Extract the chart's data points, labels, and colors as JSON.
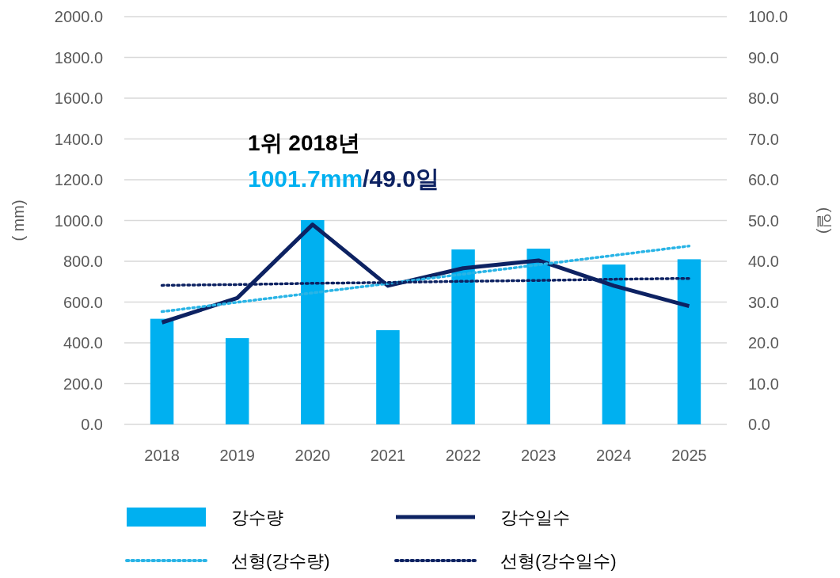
{
  "chart_data": {
    "type": "bar",
    "categories": [
      "2018",
      "2019",
      "2020",
      "2021",
      "2022",
      "2023",
      "2024",
      "2025"
    ],
    "ylabel": "( mm)",
    "y2label": "(일)",
    "annotations": [
      "1위 2018년",
      "1001.7mm",
      "/49.0일"
    ],
    "series": [
      {
        "name": "강수량",
        "color": "#00b0f0",
        "values": [
          518,
          423,
          1002,
          462,
          858,
          862,
          784,
          810
        ]
      },
      {
        "name": "강수일수",
        "type": "line",
        "axis": "y2",
        "color": "#0d2262",
        "line_style": "solid",
        "values": [
          25.0,
          31.0,
          49.0,
          34.0,
          38.3,
          40.2,
          34.0,
          29.0
        ]
      },
      {
        "name": "선형(강수량)",
        "type": "line",
        "color": "#29b4e6",
        "line_style": "dotted",
        "values": [
          553,
          599,
          645,
          691,
          737,
          783,
          829,
          875
        ]
      },
      {
        "name": "선형(강수일수)",
        "type": "line",
        "axis": "y2",
        "color": "#0d2262",
        "line_style": "dotted",
        "values": [
          34.1,
          34.3,
          34.6,
          34.8,
          35.1,
          35.3,
          35.6,
          35.8
        ]
      }
    ],
    "ylim": [
      0,
      2000
    ],
    "yticks": [
      {
        "value": 0,
        "label": "0.0"
      },
      {
        "value": 200,
        "label": "200.0"
      },
      {
        "value": 400,
        "label": "400.0"
      },
      {
        "value": 600,
        "label": "600.0"
      },
      {
        "value": 800,
        "label": "800.0"
      },
      {
        "value": 1000,
        "label": "1000.0"
      },
      {
        "value": 1200,
        "label": "1200.0"
      },
      {
        "value": 1400,
        "label": "1400.0"
      },
      {
        "value": 1600,
        "label": "1600.0"
      },
      {
        "value": 1800,
        "label": "1800.0"
      },
      {
        "value": 2000,
        "label": "2000.0"
      }
    ],
    "y2lim": [
      0,
      100
    ],
    "y2ticks": [
      {
        "value": 0,
        "label": "0.0"
      },
      {
        "value": 10,
        "label": "10.0"
      },
      {
        "value": 20,
        "label": "20.0"
      },
      {
        "value": 30,
        "label": "30.0"
      },
      {
        "value": 40,
        "label": "40.0"
      },
      {
        "value": 50,
        "label": "50.0"
      },
      {
        "value": 60,
        "label": "60.0"
      },
      {
        "value": 70,
        "label": "70.0"
      },
      {
        "value": 80,
        "label": "80.0"
      },
      {
        "value": 90,
        "label": "90.0"
      },
      {
        "value": 100,
        "label": "100.0"
      }
    ],
    "grid": "y",
    "legend": "bottom"
  }
}
